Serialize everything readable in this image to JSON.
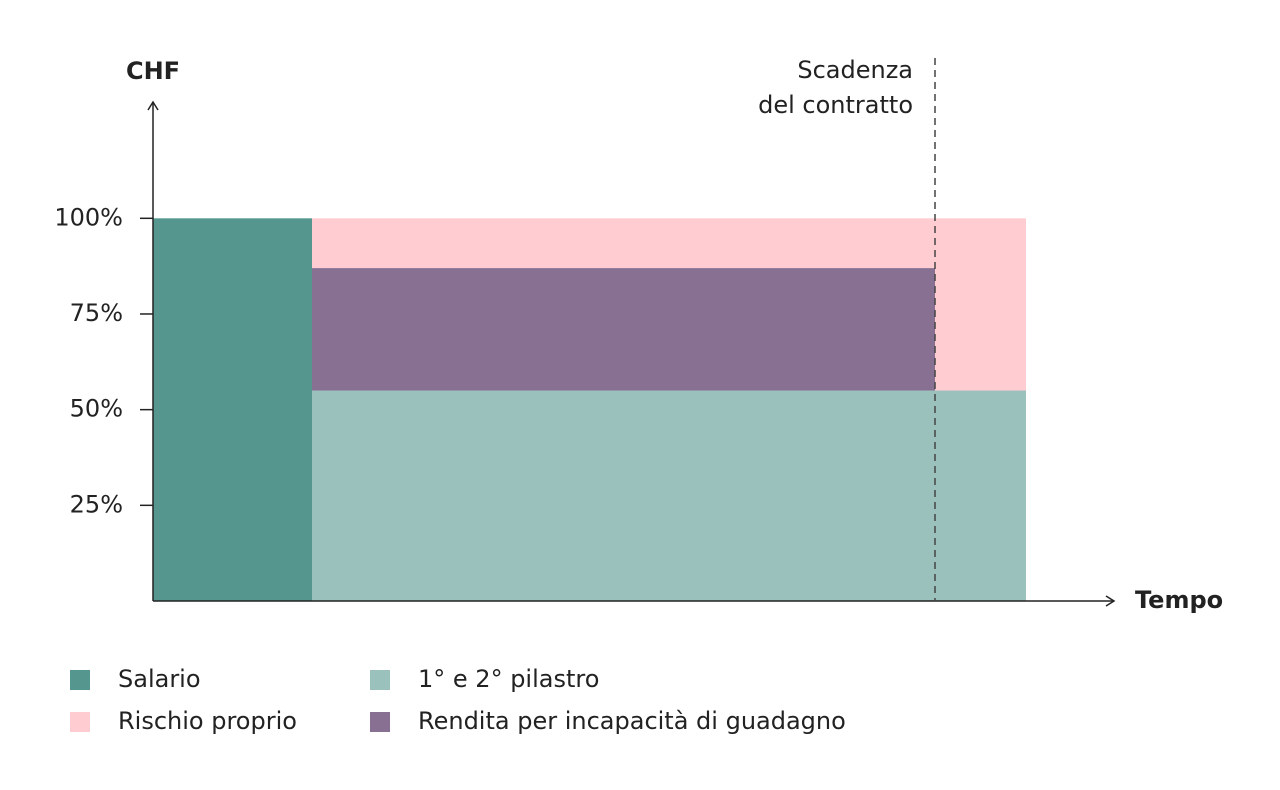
{
  "chart_data": {
    "type": "stacked-bar",
    "y_label": "CHF",
    "x_label": "Tempo",
    "annotation": [
      "Scadenza",
      "del contratto"
    ],
    "categories": [
      null,
      null,
      null
    ],
    "ylim": [
      0,
      130
    ],
    "yticks": [
      {
        "value": 25,
        "label": "25%"
      },
      {
        "value": 50,
        "label": "50%"
      },
      {
        "value": 75,
        "label": "75%"
      },
      {
        "value": 100,
        "label": "100%"
      }
    ],
    "series": [
      {
        "name": "Salario",
        "color": "#55978f",
        "values": [
          100,
          null,
          null
        ]
      },
      {
        "name": "1° e 2° pilastro",
        "color": "#9bc1bc",
        "values": [
          null,
          55,
          55
        ]
      },
      {
        "name": "Rendita per incapacità di guadagno",
        "color": "#877092",
        "values": [
          null,
          32,
          null
        ]
      },
      {
        "name": "Rischio proprio",
        "color": "#ffccd1",
        "values": [
          null,
          13,
          45
        ]
      }
    ]
  }
}
